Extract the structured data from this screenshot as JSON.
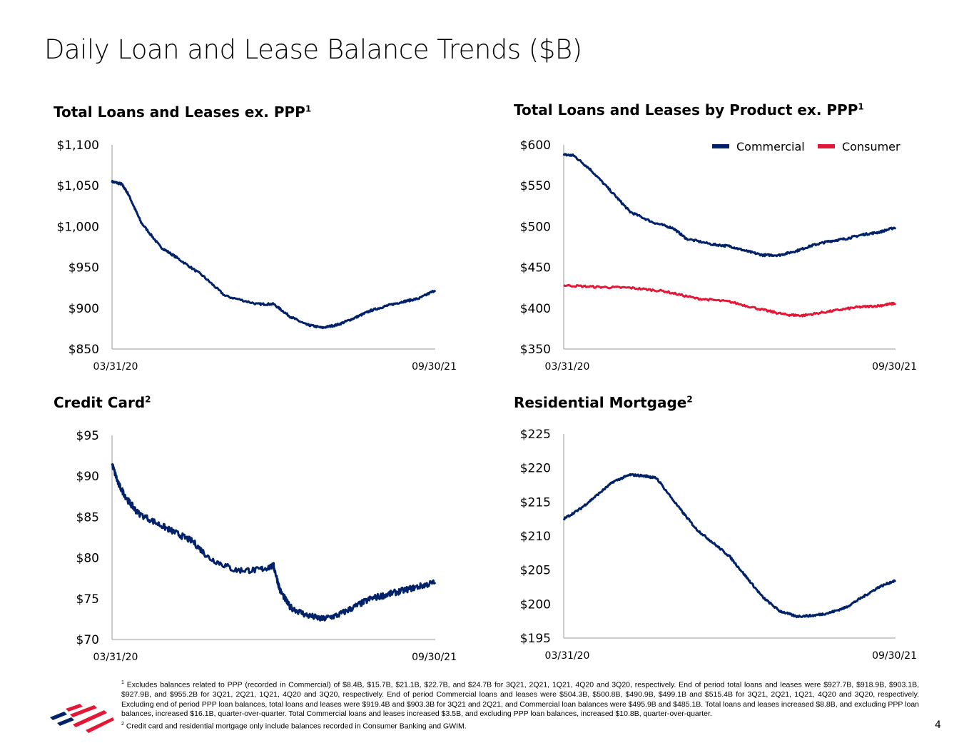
{
  "title": "Daily Loan and Lease Balance Trends ($B)",
  "page_number": "4",
  "colors": {
    "navy": "#012169",
    "red": "#e31837"
  },
  "chart_data": [
    {
      "type": "line",
      "title": "Total Loans and Leases ex. PPP",
      "footnote_ref": "1",
      "ylim": [
        850,
        1100
      ],
      "yticks": [
        "$850",
        "$900",
        "$950",
        "$1,000",
        "$1,050",
        "$1,100"
      ],
      "ytick_values": [
        850,
        900,
        950,
        1000,
        1050,
        1100
      ],
      "xticks": [
        "03/31/20",
        "09/30/21"
      ],
      "series": [
        {
          "name": "Total",
          "color": "#012169",
          "x": [
            0,
            0.03,
            0.05,
            0.09,
            0.15,
            0.2,
            0.28,
            0.35,
            0.45,
            0.5,
            0.55,
            0.6,
            0.65,
            0.7,
            0.75,
            0.8,
            0.85,
            0.9,
            0.95,
            1
          ],
          "y": [
            1055,
            1052,
            1040,
            1005,
            975,
            962,
            940,
            915,
            905,
            905,
            890,
            880,
            876,
            880,
            888,
            897,
            903,
            908,
            912,
            922
          ]
        }
      ]
    },
    {
      "type": "line",
      "title": "Total Loans and Leases by Product ex. PPP",
      "footnote_ref": "1",
      "ylim": [
        350,
        600
      ],
      "yticks": [
        "$350",
        "$400",
        "$450",
        "$500",
        "$550",
        "$600"
      ],
      "ytick_values": [
        350,
        400,
        450,
        500,
        550,
        600
      ],
      "xticks": [
        "03/31/20",
        "09/30/21"
      ],
      "legend": "top-right",
      "series": [
        {
          "name": "Commercial",
          "color": "#012169",
          "x": [
            0,
            0.03,
            0.08,
            0.15,
            0.2,
            0.27,
            0.33,
            0.37,
            0.45,
            0.5,
            0.55,
            0.6,
            0.65,
            0.7,
            0.75,
            0.8,
            0.85,
            0.9,
            0.95,
            1
          ],
          "y": [
            588,
            587,
            570,
            540,
            518,
            505,
            498,
            485,
            478,
            476,
            470,
            465,
            465,
            470,
            477,
            482,
            485,
            490,
            493,
            499
          ]
        },
        {
          "name": "Consumer",
          "color": "#e31837",
          "x": [
            0,
            0.1,
            0.2,
            0.3,
            0.4,
            0.5,
            0.6,
            0.67,
            0.72,
            0.8,
            0.88,
            0.95,
            1
          ],
          "y": [
            428,
            426,
            425,
            421,
            412,
            408,
            398,
            392,
            391,
            396,
            401,
            403,
            406
          ]
        }
      ]
    },
    {
      "type": "line",
      "title": "Credit Card",
      "footnote_ref": "2",
      "ylim": [
        70,
        95
      ],
      "yticks": [
        "$70",
        "$75",
        "$80",
        "$85",
        "$90",
        "$95"
      ],
      "ytick_values": [
        70,
        75,
        80,
        85,
        90,
        95
      ],
      "xticks": [
        "03/31/20",
        "09/30/21"
      ],
      "series": [
        {
          "name": "Credit Card",
          "color": "#012169",
          "x": [
            0,
            0.02,
            0.05,
            0.08,
            0.15,
            0.2,
            0.25,
            0.3,
            0.38,
            0.45,
            0.5,
            0.52,
            0.55,
            0.6,
            0.65,
            0.7,
            0.75,
            0.8,
            0.85,
            0.9,
            0.95,
            1
          ],
          "y": [
            91.5,
            89,
            87,
            85.5,
            84,
            83,
            82,
            80,
            78.5,
            78.5,
            79,
            76,
            74,
            73,
            72.5,
            73,
            74,
            75,
            75.5,
            76,
            76.5,
            77
          ]
        }
      ]
    },
    {
      "type": "line",
      "title": "Residential Mortgage",
      "footnote_ref": "2",
      "ylim": [
        195,
        225
      ],
      "yticks": [
        "$195",
        "$200",
        "$205",
        "$210",
        "$215",
        "$220",
        "$225"
      ],
      "ytick_values": [
        195,
        200,
        205,
        210,
        215,
        220,
        225
      ],
      "xticks": [
        "03/31/20",
        "09/30/21"
      ],
      "series": [
        {
          "name": "Residential Mortgage",
          "color": "#012169",
          "x": [
            0,
            0.05,
            0.1,
            0.15,
            0.2,
            0.25,
            0.28,
            0.35,
            0.4,
            0.45,
            0.5,
            0.55,
            0.6,
            0.65,
            0.7,
            0.75,
            0.8,
            0.85,
            0.9,
            0.95,
            1
          ],
          "y": [
            212.5,
            214,
            216,
            218,
            219,
            218.8,
            218.5,
            214,
            211,
            209,
            207,
            204,
            201,
            199,
            198.2,
            198.3,
            198.7,
            199.5,
            201,
            202.5,
            203.5
          ]
        }
      ]
    }
  ],
  "footnotes": [
    {
      "mark": "1",
      "text": "Excludes balances related to PPP (recorded in Commercial) of $8.4B, $15.7B, $21.1B, $22.7B, and $24.7B for 3Q21, 2Q21, 1Q21, 4Q20 and 3Q20, respectively. End of period total loans and leases were $927.7B, $918.9B, $903.1B, $927.9B, and $955.2B for 3Q21, 2Q21, 1Q21, 4Q20 and 3Q20, respectively. End of period Commercial loans and leases were $504.3B, $500.8B, $490.9B, $499.1B and $515.4B for 3Q21, 2Q21, 1Q21, 4Q20 and 3Q20, respectively. Excluding end of period PPP loan balances, total loans and leases were $919.4B and $903.3B for 3Q21 and 2Q21, and Commercial loan balances were $495.9B and $485.1B. Total loans and leases increased $8.8B, and excluding PPP loan balances, increased $16.1B, quarter-over-quarter. Total Commercial loans and leases increased $3.5B, and excluding PPP loan balances, increased $10.8B, quarter-over-quarter."
    },
    {
      "mark": "2",
      "text": "Credit card and residential mortgage only include balances recorded in Consumer Banking and GWIM."
    }
  ]
}
